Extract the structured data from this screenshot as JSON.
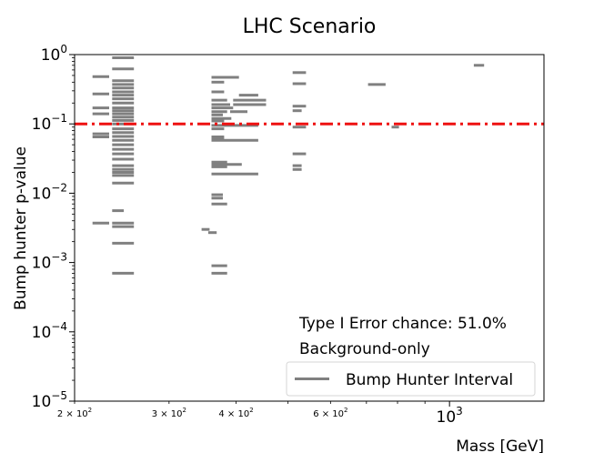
{
  "chart_data": {
    "type": "interval",
    "title": "LHC Scenario",
    "xlabel": "Mass [GeV]",
    "ylabel": "Bump hunter p-value",
    "x_scale": "log",
    "y_scale": "log",
    "xlim": [
      200,
      1500
    ],
    "ylim": [
      1e-05,
      1
    ],
    "grid": false,
    "x_ticks": [
      {
        "value": 200,
        "base": "2 × 10",
        "exp": "2",
        "major": false
      },
      {
        "value": 300,
        "base": "3 × 10",
        "exp": "2",
        "major": false
      },
      {
        "value": 400,
        "base": "4 × 10",
        "exp": "2",
        "major": false
      },
      {
        "value": 600,
        "base": "6 × 10",
        "exp": "2",
        "major": false
      },
      {
        "value": 1000,
        "base": "10",
        "exp": "3",
        "major": true
      }
    ],
    "y_ticks": [
      {
        "value": 1,
        "base": "10",
        "exp": "0"
      },
      {
        "value": 0.1,
        "base": "10",
        "exp": "−1"
      },
      {
        "value": 0.01,
        "base": "10",
        "exp": "−2"
      },
      {
        "value": 0.001,
        "base": "10",
        "exp": "−3"
      },
      {
        "value": 0.0001,
        "base": "10",
        "exp": "−4"
      },
      {
        "value": 1e-05,
        "base": "10",
        "exp": "−5"
      }
    ],
    "threshold": {
      "y": 0.1,
      "color": "#ee1111",
      "style": "dashdot"
    },
    "series": [
      {
        "name": "Bump Hunter Interval",
        "color": "#808080",
        "intervals": [
          [
            216,
            232,
            0.48
          ],
          [
            216,
            232,
            0.27
          ],
          [
            216,
            232,
            0.17
          ],
          [
            216,
            232,
            0.14
          ],
          [
            216,
            232,
            0.072
          ],
          [
            216,
            232,
            0.065
          ],
          [
            216,
            232,
            0.0037
          ],
          [
            235,
            258,
            0.9
          ],
          [
            235,
            258,
            0.62
          ],
          [
            235,
            258,
            0.42
          ],
          [
            235,
            258,
            0.37
          ],
          [
            235,
            258,
            0.33
          ],
          [
            235,
            258,
            0.29
          ],
          [
            235,
            258,
            0.26
          ],
          [
            235,
            258,
            0.23
          ],
          [
            235,
            258,
            0.2
          ],
          [
            235,
            258,
            0.17
          ],
          [
            235,
            258,
            0.155
          ],
          [
            235,
            258,
            0.14
          ],
          [
            235,
            258,
            0.125
          ],
          [
            235,
            258,
            0.112
          ],
          [
            235,
            258,
            0.1
          ],
          [
            235,
            258,
            0.085
          ],
          [
            235,
            258,
            0.075
          ],
          [
            235,
            258,
            0.066
          ],
          [
            235,
            258,
            0.058
          ],
          [
            235,
            258,
            0.05
          ],
          [
            235,
            258,
            0.043
          ],
          [
            235,
            258,
            0.037
          ],
          [
            235,
            258,
            0.031
          ],
          [
            235,
            258,
            0.025
          ],
          [
            235,
            258,
            0.022
          ],
          [
            235,
            258,
            0.02
          ],
          [
            235,
            258,
            0.018
          ],
          [
            235,
            258,
            0.014
          ],
          [
            235,
            258,
            0.0037
          ],
          [
            235,
            258,
            0.0033
          ],
          [
            235,
            258,
            0.0019
          ],
          [
            235,
            258,
            0.0007
          ],
          [
            235,
            247,
            0.0056
          ],
          [
            345,
            357,
            0.003
          ],
          [
            355,
            368,
            0.0027
          ],
          [
            360,
            405,
            0.47
          ],
          [
            360,
            380,
            0.4
          ],
          [
            360,
            380,
            0.29
          ],
          [
            360,
            385,
            0.22
          ],
          [
            360,
            390,
            0.19
          ],
          [
            360,
            395,
            0.17
          ],
          [
            360,
            385,
            0.15
          ],
          [
            360,
            378,
            0.135
          ],
          [
            360,
            392,
            0.12
          ],
          [
            360,
            380,
            0.11
          ],
          [
            360,
            440,
            0.095
          ],
          [
            360,
            380,
            0.085
          ],
          [
            360,
            380,
            0.065
          ],
          [
            360,
            380,
            0.06
          ],
          [
            360,
            440,
            0.058
          ],
          [
            360,
            385,
            0.028
          ],
          [
            360,
            410,
            0.026
          ],
          [
            360,
            385,
            0.024
          ],
          [
            360,
            440,
            0.019
          ],
          [
            360,
            378,
            0.0095
          ],
          [
            360,
            378,
            0.0085
          ],
          [
            360,
            385,
            0.007
          ],
          [
            360,
            385,
            0.0009
          ],
          [
            360,
            385,
            0.0007
          ],
          [
            405,
            440,
            0.26
          ],
          [
            395,
            455,
            0.22
          ],
          [
            395,
            455,
            0.19
          ],
          [
            390,
            420,
            0.15
          ],
          [
            510,
            540,
            0.55
          ],
          [
            510,
            540,
            0.38
          ],
          [
            510,
            540,
            0.18
          ],
          [
            510,
            530,
            0.155
          ],
          [
            510,
            540,
            0.09
          ],
          [
            510,
            540,
            0.037
          ],
          [
            510,
            530,
            0.025
          ],
          [
            510,
            530,
            0.022
          ],
          [
            705,
            760,
            0.37
          ],
          [
            780,
            805,
            0.09
          ],
          [
            1110,
            1160,
            0.7
          ]
        ]
      }
    ],
    "annotations": [
      "Type I Error chance: 51.0%",
      "Background-only"
    ],
    "legend_position": "bottom-right"
  }
}
